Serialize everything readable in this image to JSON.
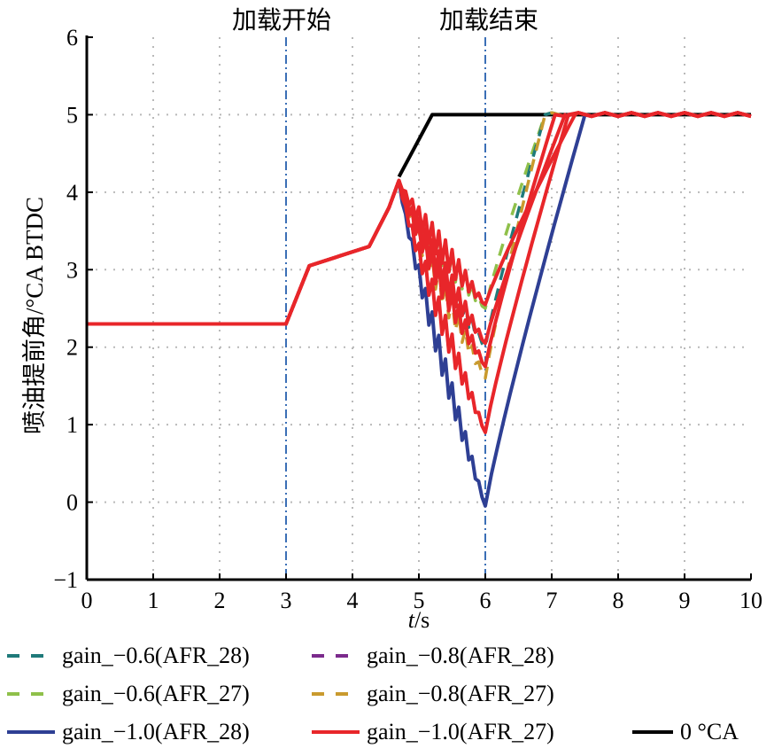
{
  "chart_data": {
    "type": "line",
    "xlabel_var": "t",
    "xlabel_unit": "/s",
    "ylabel": "喷油提前角/°CA BTDC",
    "xlim": [
      0,
      10
    ],
    "ylim": [
      -1,
      6
    ],
    "xticks": [
      "0",
      "1",
      "2",
      "3",
      "4",
      "5",
      "6",
      "7",
      "8",
      "9",
      "10"
    ],
    "yticks": [
      "−1",
      "0",
      "1",
      "2",
      "3",
      "4",
      "5",
      "6"
    ],
    "grid": true,
    "annotations": [
      {
        "text": "加载开始",
        "x": 3
      },
      {
        "text": "加载结束",
        "x": 6
      }
    ],
    "series": [
      {
        "name": "gain_−0.6(AFR_28)",
        "color": "#1f7a7a",
        "dash": true,
        "min": 2.0
      },
      {
        "name": "gain_−0.8(AFR_28)",
        "color": "#7b2a8c",
        "dash": true,
        "min": 0.9
      },
      {
        "name": "gain_−0.6(AFR_27)",
        "color": "#8fc04a",
        "dash": true,
        "min": 2.5
      },
      {
        "name": "gain_−0.8(AFR_27)",
        "color": "#c99a2e",
        "dash": true,
        "min": 1.6
      },
      {
        "name": "gain_−1.0(AFR_28)",
        "color": "#2e3f94",
        "dash": false,
        "min": -0.05
      },
      {
        "name": "gain_−1.0(AFR_27)",
        "color": "#e8262a",
        "dash": false,
        "min": 0.9
      },
      {
        "name": "0 °CA",
        "color": "#000000",
        "dash": false
      }
    ],
    "baseline_path": {
      "x": [
        0,
        3,
        3.35,
        4.25,
        4.55,
        4.7
      ],
      "y": [
        2.3,
        2.3,
        3.05,
        3.3,
        3.8,
        4.15
      ]
    },
    "zero_ca_path": {
      "x": [
        4.7,
        5.2,
        10
      ],
      "y": [
        4.2,
        5.0,
        5.0
      ]
    }
  }
}
